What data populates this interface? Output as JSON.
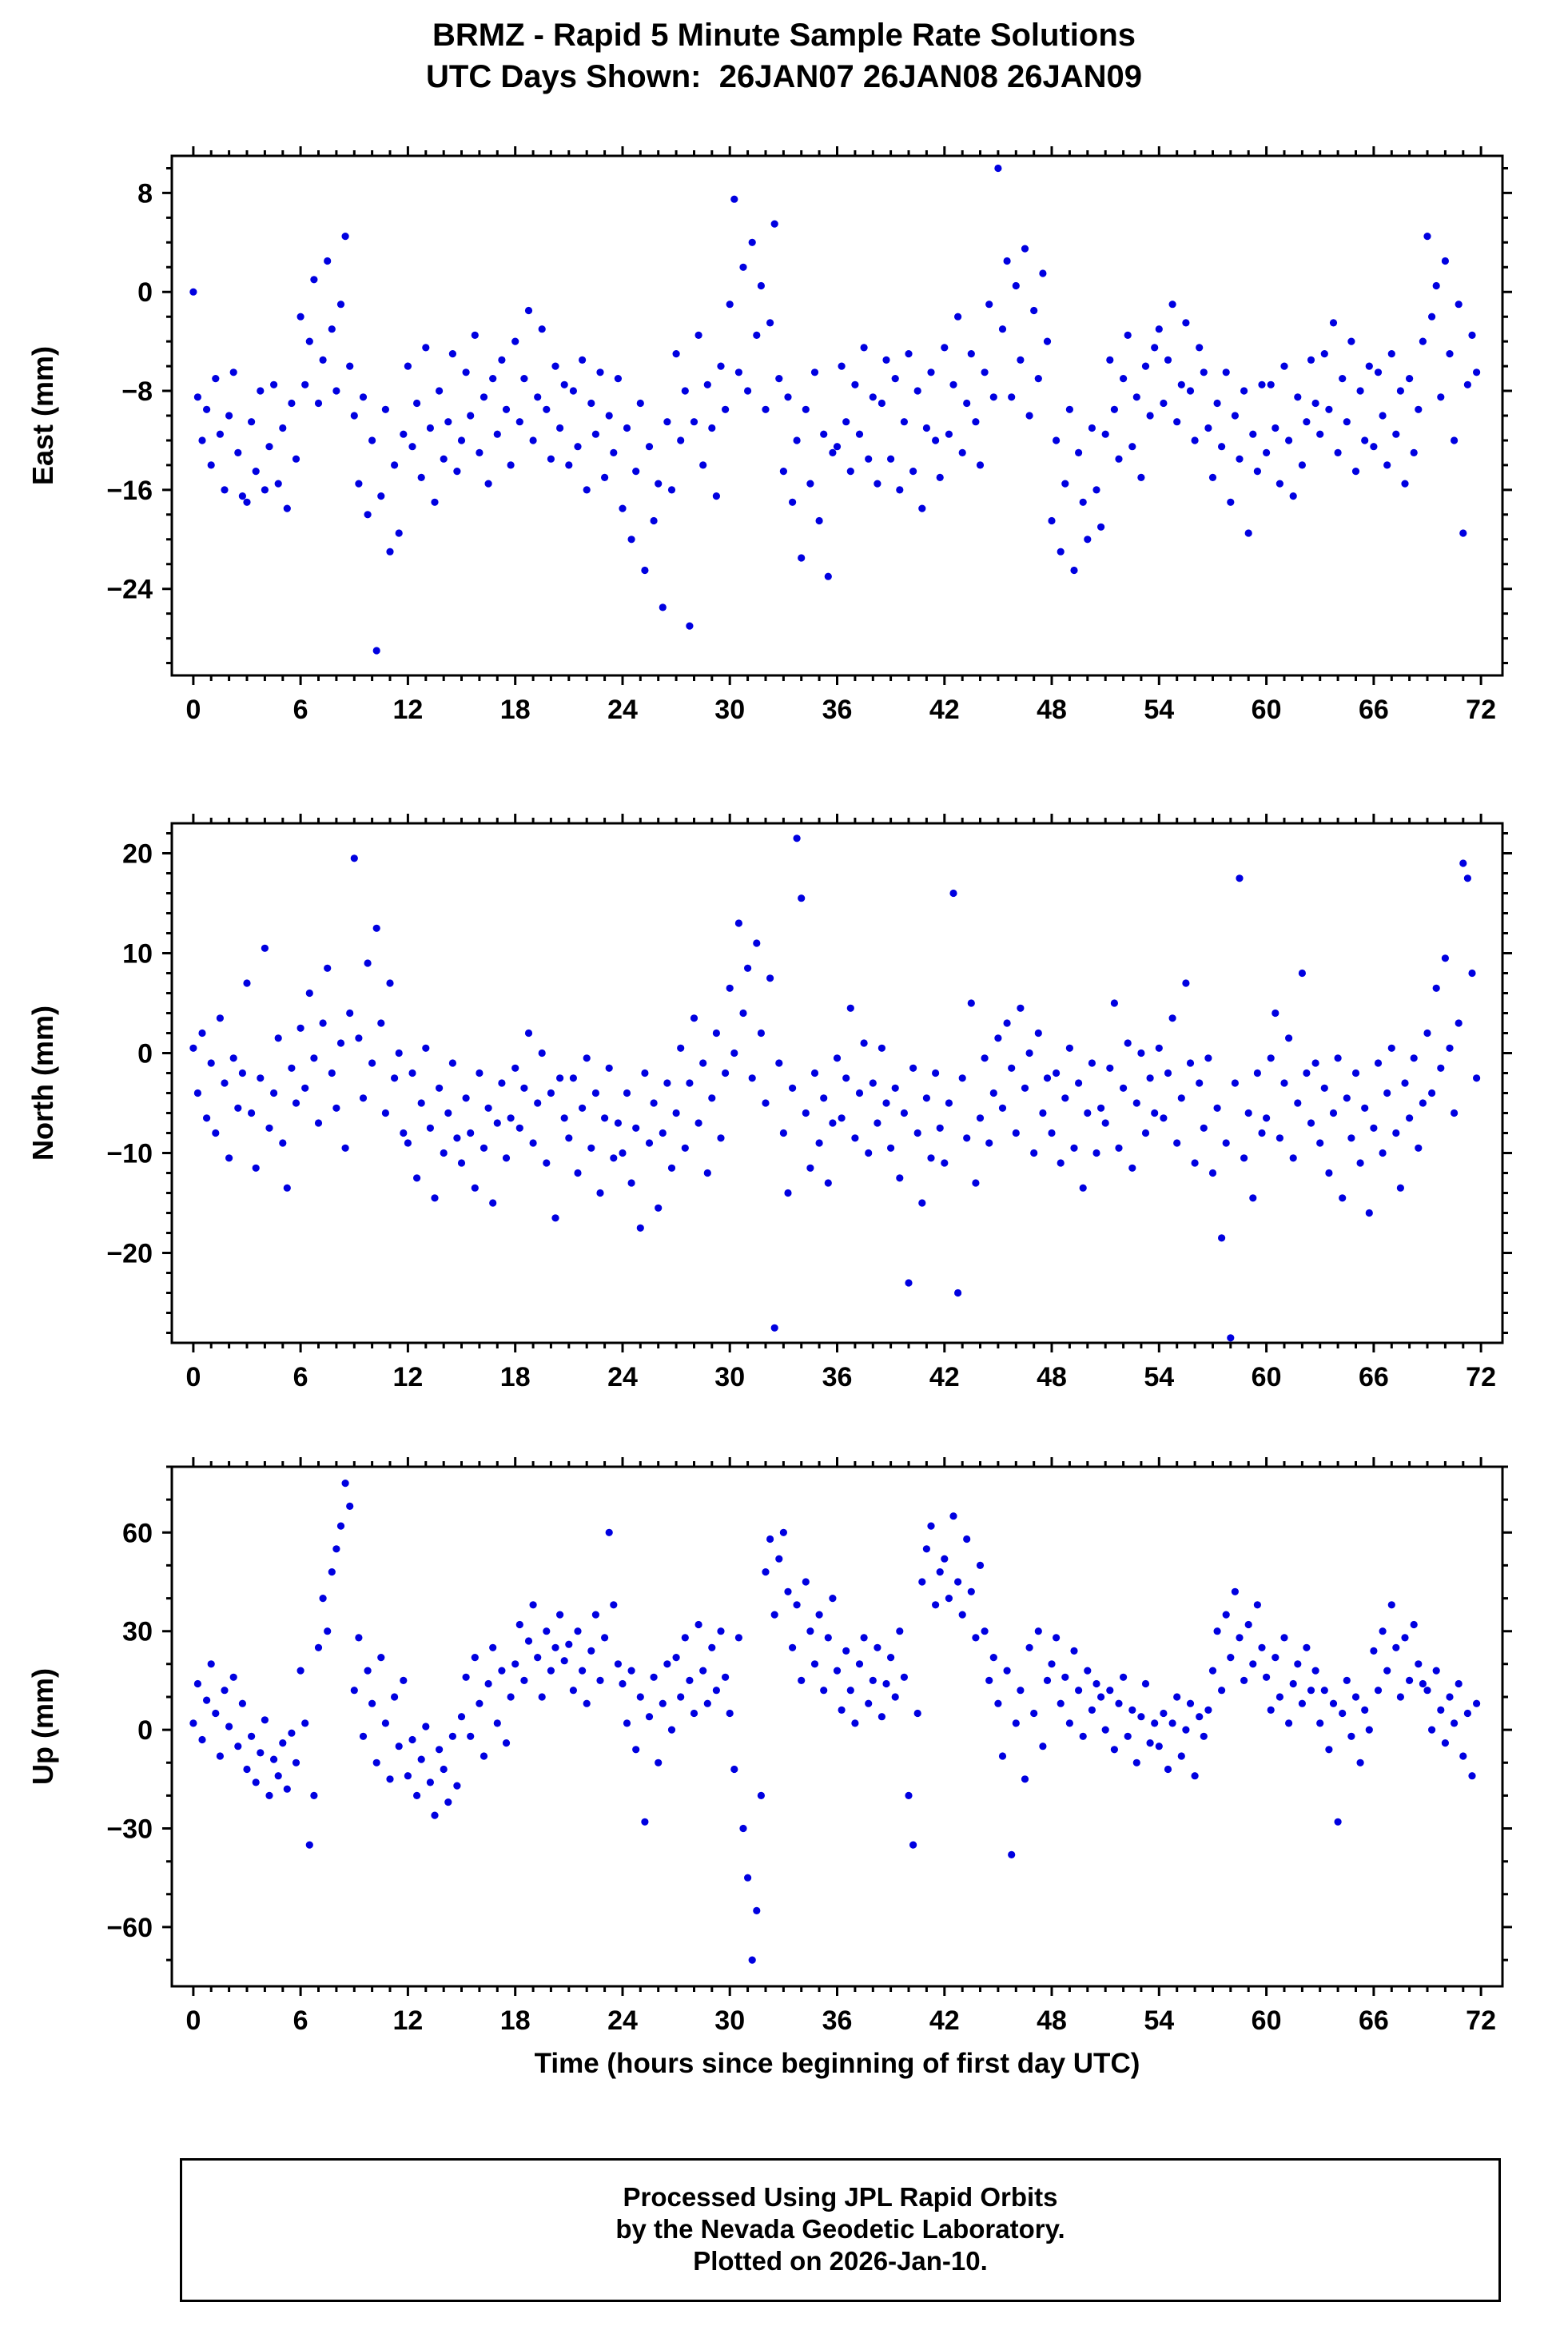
{
  "title": {
    "line1": "BRMZ - Rapid 5 Minute Sample Rate Solutions",
    "line2": "UTC Days Shown:  26JAN07 26JAN08 26JAN09"
  },
  "xlabel": "Time (hours since beginning of first day UTC)",
  "footer": {
    "lines": [
      "Processed Using JPL Rapid Orbits",
      "by the Nevada Geodetic Laboratory.",
      "Plotted on 2026-Jan-10."
    ]
  },
  "style": {
    "marker_color": "#0000e0",
    "frame_color": "#000000",
    "tick_major": 12,
    "tick_minor": 7
  },
  "chart_data": [
    {
      "type": "scatter",
      "name": "east",
      "ylabel": "East (mm)",
      "xlim": [
        -1.2,
        73.2
      ],
      "ylim": [
        -31,
        11
      ],
      "xticks": [
        0,
        6,
        12,
        18,
        24,
        30,
        36,
        42,
        48,
        54,
        60,
        66,
        72
      ],
      "xtick_minor": 1,
      "yticks": [
        8,
        0,
        -8,
        -16,
        -24
      ],
      "ytick_minor": 2,
      "x_start": 0,
      "x_step": 0.25,
      "y": [
        0,
        -8.5,
        -12,
        -9.5,
        -14,
        -7,
        -11.5,
        -16,
        -10,
        -6.5,
        -13,
        -16.5,
        -17,
        -10.5,
        -14.5,
        -8,
        -16,
        -12.5,
        -7.5,
        -15.5,
        -11,
        -17.5,
        -9,
        -13.5,
        -2,
        -7.5,
        -4,
        1,
        -9,
        -5.5,
        2.5,
        -3,
        -8,
        -1,
        4.5,
        -6,
        -10,
        -15.5,
        -8.5,
        -18,
        -12,
        -29,
        -16.5,
        -9.5,
        -21,
        -14,
        -19.5,
        -11.5,
        -6,
        -12.5,
        -9,
        -15,
        -4.5,
        -11,
        -17,
        -8,
        -13.5,
        -10.5,
        -5,
        -14.5,
        -12,
        -6.5,
        -10,
        -3.5,
        -13,
        -8.5,
        -15.5,
        -7,
        -11.5,
        -5.5,
        -9.5,
        -14,
        -4,
        -10.5,
        -7,
        -1.5,
        -12,
        -8.5,
        -3,
        -9.5,
        -13.5,
        -6,
        -11,
        -7.5,
        -14,
        -8,
        -12.5,
        -5.5,
        -16,
        -9,
        -11.5,
        -6.5,
        -15,
        -10,
        -13,
        -7,
        -17.5,
        -11,
        -20,
        -14.5,
        -9,
        -22.5,
        -12.5,
        -18.5,
        -15.5,
        -25.5,
        -10.5,
        -16,
        -5,
        -12,
        -8,
        -27,
        -10.5,
        -3.5,
        -14,
        -7.5,
        -11,
        -16.5,
        -6,
        -9.5,
        -1,
        7.5,
        -6.5,
        2,
        -8,
        4,
        -3.5,
        0.5,
        -9.5,
        -2.5,
        5.5,
        -7,
        -14.5,
        -8.5,
        -17,
        -12,
        -21.5,
        -9.5,
        -15.5,
        -6.5,
        -18.5,
        -11.5,
        -23,
        -13,
        -12.5,
        -6,
        -10.5,
        -14.5,
        -7.5,
        -11.5,
        -4.5,
        -13.5,
        -8.5,
        -15.5,
        -9,
        -5.5,
        -13.5,
        -7,
        -16,
        -10.5,
        -5,
        -14.5,
        -8,
        -17.5,
        -11,
        -6.5,
        -12,
        -15,
        -4.5,
        -11.5,
        -7.5,
        -2,
        -13,
        -9,
        -5,
        -10.5,
        -14,
        -6.5,
        -1,
        -8.5,
        10,
        -3,
        2.5,
        -8.5,
        0.5,
        -5.5,
        3.5,
        -10,
        -1.5,
        -7,
        1.5,
        -4,
        -18.5,
        -12,
        -21,
        -15.5,
        -9.5,
        -22.5,
        -13,
        -17,
        -20,
        -11,
        -16,
        -19,
        -11.5,
        -5.5,
        -9.5,
        -13.5,
        -7,
        -3.5,
        -12.5,
        -8.5,
        -15,
        -6,
        -10,
        -4.5,
        -3,
        -9,
        -5.5,
        -1,
        -10.5,
        -7.5,
        -2.5,
        -8,
        -12,
        -4.5,
        -6.5,
        -11,
        -15,
        -9,
        -12.5,
        -6.5,
        -17,
        -10,
        -13.5,
        -8,
        -19.5,
        -11.5,
        -14.5,
        -7.5,
        -13,
        -7.5,
        -11,
        -15.5,
        -6,
        -12,
        -16.5,
        -8.5,
        -14,
        -10.5,
        -5.5,
        -9,
        -11.5,
        -5,
        -9.5,
        -2.5,
        -13,
        -7,
        -10.5,
        -4,
        -14.5,
        -8,
        -12,
        -6,
        -12.5,
        -6.5,
        -10,
        -14,
        -5,
        -11.5,
        -8,
        -15.5,
        -7,
        -13,
        -9.5,
        -4,
        4.5,
        -2,
        0.5,
        -8.5,
        2.5,
        -5,
        -12,
        -1,
        -19.5,
        -7.5,
        -3.5,
        -6.5
      ]
    },
    {
      "type": "scatter",
      "name": "north",
      "ylabel": "North (mm)",
      "xlim": [
        -1.2,
        73.2
      ],
      "ylim": [
        -29,
        23
      ],
      "xticks": [
        0,
        6,
        12,
        18,
        24,
        30,
        36,
        42,
        48,
        54,
        60,
        66,
        72
      ],
      "xtick_minor": 1,
      "yticks": [
        20,
        10,
        0,
        -10,
        -20
      ],
      "ytick_minor": 2,
      "x_start": 0,
      "x_step": 0.25,
      "y": [
        0.5,
        -4,
        2,
        -6.5,
        -1,
        -8,
        3.5,
        -3,
        -10.5,
        -0.5,
        -5.5,
        -2,
        7,
        -6,
        -11.5,
        -2.5,
        10.5,
        -7.5,
        -4,
        1.5,
        -9,
        -13.5,
        -1.5,
        -5,
        2.5,
        -3.5,
        6,
        -0.5,
        -7,
        3,
        8.5,
        -2,
        -5.5,
        1,
        -9.5,
        4,
        19.5,
        1.5,
        -4.5,
        9,
        -1,
        12.5,
        3,
        -6,
        7,
        -2.5,
        0,
        -8,
        -9,
        -2,
        -12.5,
        -5,
        0.5,
        -7.5,
        -14.5,
        -3.5,
        -10,
        -6,
        -1,
        -8.5,
        -11,
        -4.5,
        -8,
        -13.5,
        -2,
        -9.5,
        -5.5,
        -15,
        -7,
        -3,
        -10.5,
        -6.5,
        -1.5,
        -7.5,
        -3.5,
        2,
        -9,
        -5,
        0,
        -11,
        -4,
        -16.5,
        -2.5,
        -6.5,
        -8.5,
        -2.5,
        -12,
        -5.5,
        -0.5,
        -9.5,
        -4,
        -14,
        -6.5,
        -1.5,
        -10.5,
        -7,
        -10,
        -4,
        -13,
        -7.5,
        -17.5,
        -2,
        -9,
        -5,
        -15.5,
        -8,
        -3,
        -11.5,
        -6,
        0.5,
        -9.5,
        -3,
        3.5,
        -7,
        -1,
        -12,
        -4.5,
        2,
        -8.5,
        -2,
        6.5,
        0,
        13,
        4,
        8.5,
        -2.5,
        11,
        2,
        -5,
        7.5,
        -27.5,
        -1,
        -8,
        -14,
        -3.5,
        21.5,
        15.5,
        -6,
        -11.5,
        -2,
        -9,
        -4.5,
        -13,
        -7,
        -0.5,
        -6.5,
        -2.5,
        4.5,
        -8.5,
        -4,
        1,
        -10,
        -3,
        -7,
        0.5,
        -5,
        -9.5,
        -3.5,
        -12.5,
        -6,
        -23,
        -1.5,
        -8,
        -15,
        -4.5,
        -10.5,
        -2,
        -7.5,
        -11,
        -5,
        16,
        -24,
        -2.5,
        -8.5,
        5,
        -13,
        -6.5,
        -0.5,
        -9,
        -4,
        1.5,
        -5.5,
        3,
        -1.5,
        -8,
        4.5,
        -3.5,
        0,
        -10,
        2,
        -6,
        -2.5,
        -8,
        -2,
        -11,
        -4.5,
        0.5,
        -9.5,
        -3,
        -13.5,
        -6,
        -1,
        -10,
        -5.5,
        -7,
        -1.5,
        5,
        -9.5,
        -3.5,
        1,
        -11.5,
        -5,
        0,
        -8,
        -2.5,
        -6,
        0.5,
        -6.5,
        -2,
        3.5,
        -9,
        -4.5,
        7,
        -1,
        -11,
        -3,
        -7.5,
        -0.5,
        -12,
        -5.5,
        -18.5,
        -9,
        -28.5,
        -3,
        17.5,
        -10.5,
        -6,
        -14.5,
        -2,
        -8,
        -6.5,
        -0.5,
        4,
        -8.5,
        -3,
        1.5,
        -10.5,
        -5,
        8,
        -2,
        -7,
        -1,
        -9,
        -3.5,
        -12,
        -6,
        -0.5,
        -14.5,
        -4.5,
        -8.5,
        -2,
        -11,
        -5.5,
        -16,
        -7.5,
        -1,
        -10,
        -4,
        0.5,
        -8,
        -13.5,
        -3,
        -6.5,
        -0.5,
        -9.5,
        -5,
        2,
        -4,
        6.5,
        -1.5,
        9.5,
        0.5,
        -6,
        3,
        19,
        17.5,
        8,
        -2.5
      ]
    },
    {
      "type": "scatter",
      "name": "up",
      "ylabel": "Up (mm)",
      "xlim": [
        -1.2,
        73.2
      ],
      "ylim": [
        -78,
        80
      ],
      "xticks": [
        0,
        6,
        12,
        18,
        24,
        30,
        36,
        42,
        48,
        54,
        60,
        66,
        72
      ],
      "xtick_minor": 1,
      "yticks": [
        60,
        30,
        0,
        -30,
        -60
      ],
      "ytick_minor": 10,
      "x_start": 0,
      "x_step": 0.25,
      "y": [
        2,
        14,
        -3,
        9,
        20,
        5,
        -8,
        12,
        1,
        16,
        -5,
        8,
        -12,
        -2,
        -16,
        -7,
        3,
        -20,
        -9,
        -14,
        -4,
        -18,
        -1,
        -10,
        18,
        2,
        -35,
        -20,
        25,
        40,
        30,
        48,
        55,
        62,
        75,
        68,
        12,
        28,
        -2,
        18,
        8,
        -10,
        22,
        2,
        -15,
        10,
        -5,
        15,
        -14,
        -3,
        -20,
        -9,
        1,
        -16,
        -26,
        -6,
        -12,
        -22,
        -2,
        -17,
        4,
        16,
        -2,
        22,
        8,
        -8,
        14,
        25,
        2,
        18,
        -4,
        10,
        20,
        32,
        15,
        27,
        38,
        22,
        10,
        30,
        18,
        25,
        35,
        21,
        26,
        12,
        30,
        18,
        8,
        24,
        35,
        15,
        28,
        60,
        38,
        20,
        14,
        2,
        18,
        -6,
        10,
        -28,
        4,
        16,
        -10,
        8,
        20,
        0,
        22,
        10,
        28,
        15,
        5,
        32,
        18,
        8,
        25,
        12,
        30,
        16,
        5,
        -12,
        28,
        -30,
        -45,
        -70,
        -55,
        -20,
        48,
        58,
        35,
        52,
        60,
        42,
        25,
        38,
        15,
        45,
        30,
        20,
        35,
        12,
        28,
        40,
        18,
        6,
        24,
        12,
        2,
        20,
        28,
        8,
        15,
        25,
        4,
        14,
        22,
        10,
        30,
        16,
        -20,
        -35,
        5,
        45,
        55,
        62,
        38,
        48,
        52,
        40,
        65,
        45,
        35,
        58,
        42,
        28,
        50,
        30,
        15,
        22,
        8,
        -8,
        18,
        -38,
        2,
        12,
        -15,
        25,
        5,
        30,
        -5,
        15,
        20,
        28,
        8,
        16,
        2,
        24,
        12,
        -2,
        18,
        6,
        14,
        10,
        0,
        12,
        -6,
        8,
        16,
        -2,
        6,
        -10,
        4,
        14,
        -4,
        2,
        -5,
        5,
        -12,
        2,
        10,
        -8,
        0,
        8,
        -14,
        4,
        -2,
        6,
        18,
        30,
        12,
        35,
        22,
        42,
        28,
        15,
        32,
        20,
        38,
        25,
        16,
        6,
        22,
        10,
        28,
        2,
        14,
        20,
        8,
        25,
        12,
        18,
        2,
        12,
        -6,
        8,
        -28,
        5,
        15,
        -2,
        10,
        -10,
        6,
        0,
        24,
        12,
        30,
        18,
        38,
        25,
        10,
        28,
        15,
        32,
        20,
        14,
        12,
        0,
        18,
        6,
        -4,
        10,
        2,
        14,
        -8,
        5,
        -14,
        8
      ]
    }
  ]
}
